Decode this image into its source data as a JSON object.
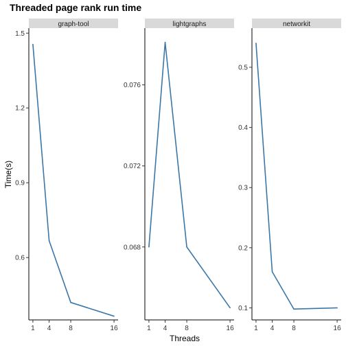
{
  "chart_data": {
    "type": "line",
    "title": "Threaded page rank run time",
    "xlabel": "Threads",
    "ylabel": "Time(s)",
    "line_color": "#3b76a8",
    "strip_color": "#d9d9d9",
    "facets": [
      {
        "name": "graph-tool",
        "x": [
          1,
          4,
          8,
          16
        ],
        "y": [
          1.455,
          0.668,
          0.42,
          0.365
        ],
        "xlim": [
          0.25,
          16.75
        ],
        "ylim": [
          0.35,
          1.52
        ],
        "xticks": [
          1,
          4,
          8,
          16
        ],
        "yticks": [
          0.6,
          0.9,
          1.2,
          1.5
        ],
        "ytick_labels": [
          "0.6",
          "0.9",
          "1.2",
          "1.5"
        ]
      },
      {
        "name": "lightgraphs",
        "x": [
          1,
          4,
          8,
          16
        ],
        "y": [
          0.068,
          0.0781,
          0.068,
          0.065
        ],
        "xlim": [
          0.25,
          16.75
        ],
        "ylim": [
          0.0644,
          0.0788
        ],
        "xticks": [
          1,
          4,
          8,
          16
        ],
        "yticks": [
          0.068,
          0.072,
          0.076
        ],
        "ytick_labels": [
          "0.068",
          "0.072",
          "0.076"
        ]
      },
      {
        "name": "networkit",
        "x": [
          1,
          4,
          8,
          16
        ],
        "y": [
          0.54,
          0.16,
          0.098,
          0.1
        ],
        "xlim": [
          0.25,
          16.75
        ],
        "ylim": [
          0.08,
          0.565
        ],
        "xticks": [
          1,
          4,
          8,
          16
        ],
        "yticks": [
          0.1,
          0.2,
          0.3,
          0.4,
          0.5
        ],
        "ytick_labels": [
          "0.1",
          "0.2",
          "0.3",
          "0.4",
          "0.5"
        ]
      }
    ]
  }
}
